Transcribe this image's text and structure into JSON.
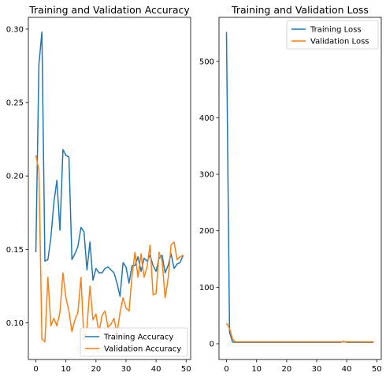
{
  "colors": {
    "training": "#1f77b4",
    "validation": "#ff7f0e"
  },
  "chart_data": [
    {
      "type": "line",
      "title": "Training and Validation Accuracy",
      "xlabel": "",
      "ylabel": "",
      "xlim": [
        -2.5,
        51.5
      ],
      "ylim": [
        0.075,
        0.308
      ],
      "xticks": [
        0,
        10,
        20,
        30,
        40,
        50
      ],
      "yticks": [
        0.1,
        0.15,
        0.2,
        0.25,
        0.3
      ],
      "ytick_labels": [
        "0.10",
        "0.15",
        "0.20",
        "0.25",
        "0.30"
      ],
      "grid": false,
      "legend": "lower-right",
      "series": [
        {
          "name": "Training Accuracy",
          "color": "#1f77b4",
          "x": [
            0,
            1,
            2,
            3,
            4,
            5,
            6,
            7,
            8,
            9,
            10,
            11,
            12,
            13,
            14,
            15,
            16,
            17,
            18,
            19,
            20,
            21,
            22,
            23,
            24,
            25,
            26,
            27,
            28,
            29,
            30,
            31,
            32,
            33,
            34,
            35,
            36,
            37,
            38,
            39,
            40,
            41,
            42,
            43,
            44,
            45,
            46,
            47,
            48,
            49
          ],
          "values": [
            0.148,
            0.276,
            0.298,
            0.142,
            0.143,
            0.158,
            0.182,
            0.197,
            0.163,
            0.218,
            0.214,
            0.213,
            0.143,
            0.147,
            0.152,
            0.165,
            0.162,
            0.136,
            0.155,
            0.129,
            0.137,
            0.134,
            0.134,
            0.137,
            0.138,
            0.136,
            0.134,
            0.127,
            0.118,
            0.141,
            0.138,
            0.127,
            0.139,
            0.139,
            0.145,
            0.135,
            0.144,
            0.142,
            0.146,
            0.139,
            0.135,
            0.144,
            0.146,
            0.134,
            0.139,
            0.147,
            0.137,
            0.14,
            0.141,
            0.146
          ]
        },
        {
          "name": "Validation Accuracy",
          "color": "#ff7f0e",
          "x": [
            0,
            1,
            2,
            3,
            4,
            5,
            6,
            7,
            8,
            9,
            10,
            11,
            12,
            13,
            14,
            15,
            16,
            17,
            18,
            19,
            20,
            21,
            22,
            23,
            24,
            25,
            26,
            27,
            28,
            29,
            30,
            31,
            32,
            33,
            34,
            35,
            36,
            37,
            38,
            39,
            40,
            41,
            42,
            43,
            44,
            45,
            46,
            47,
            48,
            49
          ],
          "values": [
            0.214,
            0.204,
            0.089,
            0.087,
            0.131,
            0.098,
            0.103,
            0.098,
            0.107,
            0.134,
            0.117,
            0.108,
            0.094,
            0.102,
            0.107,
            0.131,
            0.088,
            0.097,
            0.125,
            0.102,
            0.106,
            0.093,
            0.105,
            0.108,
            0.097,
            0.099,
            0.103,
            0.093,
            0.107,
            0.117,
            0.11,
            0.108,
            0.132,
            0.148,
            0.131,
            0.147,
            0.131,
            0.138,
            0.153,
            0.119,
            0.12,
            0.148,
            0.142,
            0.117,
            0.13,
            0.153,
            0.155,
            0.143,
            0.145,
            0.146
          ]
        }
      ]
    },
    {
      "type": "line",
      "title": "Training and Validation Loss",
      "xlabel": "",
      "ylabel": "",
      "xlim": [
        -2.5,
        51.5
      ],
      "ylim": [
        -28,
        578
      ],
      "xticks": [
        0,
        10,
        20,
        30,
        40,
        50
      ],
      "yticks": [
        0,
        100,
        200,
        300,
        400,
        500
      ],
      "ytick_labels": [
        "0",
        "100",
        "200",
        "300",
        "400",
        "500"
      ],
      "grid": false,
      "legend": "top-right",
      "series": [
        {
          "name": "Training Loss",
          "color": "#1f77b4",
          "x": [
            0,
            1,
            2,
            3,
            4,
            5,
            6,
            7,
            8,
            9,
            10,
            11,
            12,
            13,
            14,
            15,
            16,
            17,
            18,
            19,
            20,
            21,
            22,
            23,
            24,
            25,
            26,
            27,
            28,
            29,
            30,
            31,
            32,
            33,
            34,
            35,
            36,
            37,
            38,
            39,
            40,
            41,
            42,
            43,
            44,
            45,
            46,
            47,
            48,
            49
          ],
          "values": [
            552,
            20,
            3,
            2.5,
            2.5,
            2.5,
            2.5,
            2.5,
            2.5,
            2.5,
            2.5,
            2.5,
            2.5,
            2.5,
            2.5,
            2.5,
            2.5,
            2.5,
            2.5,
            2.5,
            2.5,
            2.5,
            2.5,
            2.5,
            2.5,
            2.5,
            2.5,
            2.5,
            2.5,
            2.5,
            2.5,
            2.5,
            2.5,
            2.5,
            2.5,
            2.5,
            2.5,
            2.5,
            2.5,
            4,
            2.5,
            2.5,
            2.5,
            2.5,
            2.5,
            2.5,
            2.5,
            2.5,
            2.5,
            2.5
          ]
        },
        {
          "name": "Validation Loss",
          "color": "#ff7f0e",
          "x": [
            0,
            1,
            2,
            3,
            4,
            5,
            6,
            7,
            8,
            9,
            10,
            11,
            12,
            13,
            14,
            15,
            16,
            17,
            18,
            19,
            20,
            21,
            22,
            23,
            24,
            25,
            26,
            27,
            28,
            29,
            30,
            31,
            32,
            33,
            34,
            35,
            36,
            37,
            38,
            39,
            40,
            41,
            42,
            43,
            44,
            45,
            46,
            47,
            48,
            49
          ],
          "values": [
            36,
            27,
            8,
            3,
            3,
            3,
            3,
            3,
            3,
            3,
            3,
            3,
            3,
            3,
            3,
            3,
            3,
            3,
            3,
            3,
            3,
            3,
            3,
            3,
            3,
            3,
            3,
            3,
            3,
            3,
            3,
            3,
            3,
            3,
            3,
            3,
            3,
            3,
            3,
            3,
            3,
            3,
            3,
            3,
            3,
            3,
            3,
            3,
            3,
            3
          ]
        }
      ]
    }
  ]
}
